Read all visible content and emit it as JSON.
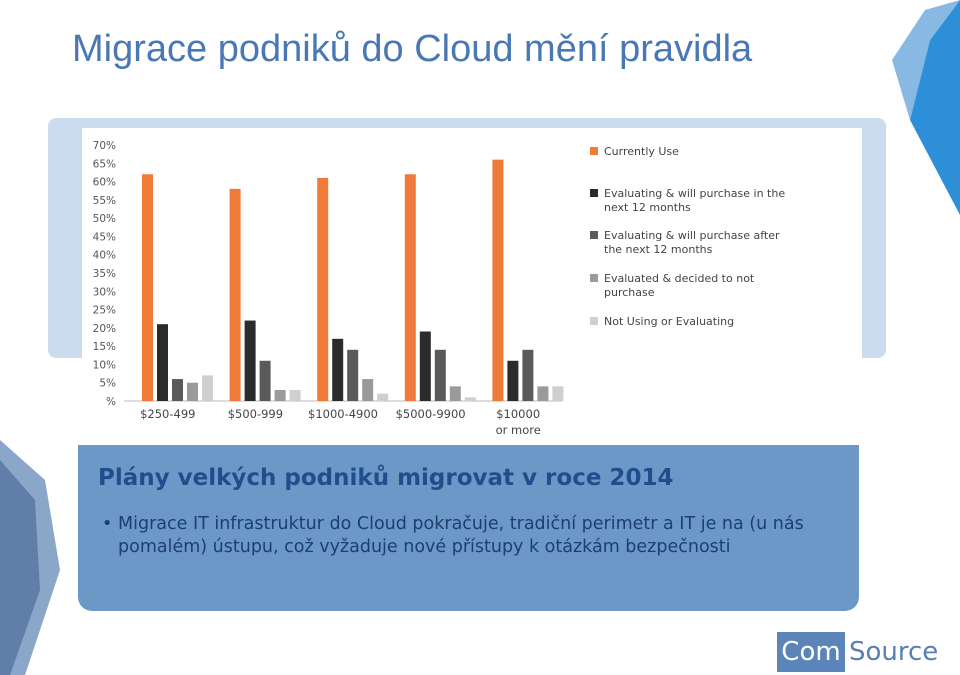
{
  "slide": {
    "title": "Migrace podniků do Cloud mění pravidla"
  },
  "info": {
    "heading": "Plány velkých podniků migrovat v roce 2014",
    "bullet": "•",
    "text": "Migrace IT infrastruktur do Cloud pokračuje, tradiční perimetr a IT je na (u nás pomalém) ústupu, což vyžaduje nové přístupy k otázkám bezpečnosti"
  },
  "logo": {
    "left": "Com",
    "right": "Source",
    "left_color": "#5b85b8"
  },
  "chart_data": {
    "type": "bar",
    "categories": [
      "$250-499",
      "$500-999",
      "$1000-4900",
      "$5000-9900",
      "$10000 or more"
    ],
    "y_ticks": [
      "%",
      "5%",
      "10%",
      "15%",
      "20%",
      "25%",
      "30%",
      "35%",
      "40%",
      "45%",
      "50%",
      "55%",
      "60%",
      "65%",
      "70%"
    ],
    "ylim": [
      0,
      70
    ],
    "grid": false,
    "legend_position": "right",
    "series": [
      {
        "name": "Currently Use",
        "color": "#f07a3a",
        "values": [
          62,
          58,
          61,
          62,
          66
        ]
      },
      {
        "name": "Evaluating & will purchase in the next 12 months",
        "color": "#2b2b2b",
        "values": [
          21,
          22,
          17,
          19,
          11
        ]
      },
      {
        "name": "Evaluating & will purchase after the next 12 months",
        "color": "#5a5a5a",
        "values": [
          6,
          11,
          14,
          14,
          14
        ]
      },
      {
        "name": "Evaluated & decided to not purchase",
        "color": "#9a9a9a",
        "values": [
          5,
          3,
          6,
          4,
          4
        ]
      },
      {
        "name": "Not Using or Evaluating",
        "color": "#cfcfcf",
        "values": [
          7,
          3,
          2,
          1,
          4
        ]
      }
    ]
  }
}
